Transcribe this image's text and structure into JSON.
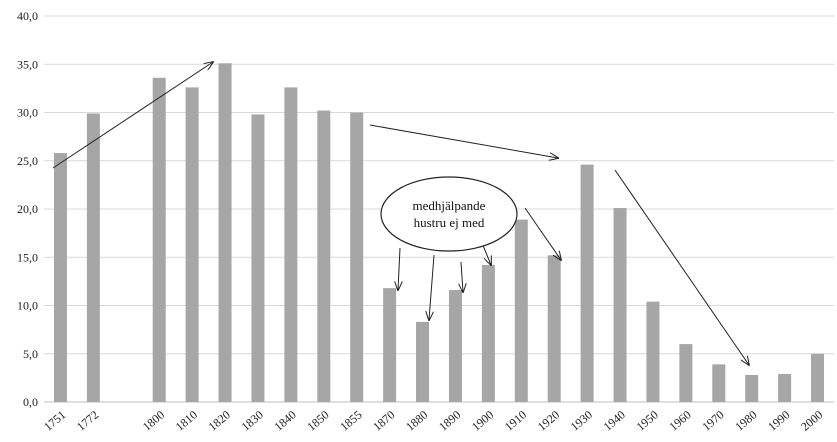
{
  "chart_data": {
    "type": "bar",
    "title": "",
    "xlabel": "",
    "ylabel": "",
    "ylim": [
      0,
      40
    ],
    "yticks": [
      "0,0",
      "5,0",
      "10,0",
      "15,0",
      "20,0",
      "25,0",
      "30,0",
      "35,0",
      "40,0"
    ],
    "grid": true,
    "legend": "none",
    "bar_color": "#a6a6a6",
    "grid_color": "#d9d9d9",
    "categories": [
      "1751",
      "1772",
      "",
      "1800",
      "1810",
      "1820",
      "1830",
      "1840",
      "1850",
      "1855",
      "1870",
      "1880",
      "1890",
      "1900",
      "1910",
      "1920",
      "1930",
      "1940",
      "1950",
      "1960",
      "1970",
      "1980",
      "1990",
      "2000"
    ],
    "values": [
      25.8,
      29.9,
      null,
      33.6,
      32.6,
      35.1,
      29.8,
      32.6,
      30.2,
      30.0,
      11.8,
      8.3,
      11.6,
      14.2,
      18.9,
      15.2,
      24.6,
      20.1,
      10.4,
      6.0,
      3.9,
      2.8,
      2.9,
      5.0
    ],
    "annotations": {
      "callout_lines": [
        "medhjälpande",
        "hustru ej med"
      ]
    }
  }
}
